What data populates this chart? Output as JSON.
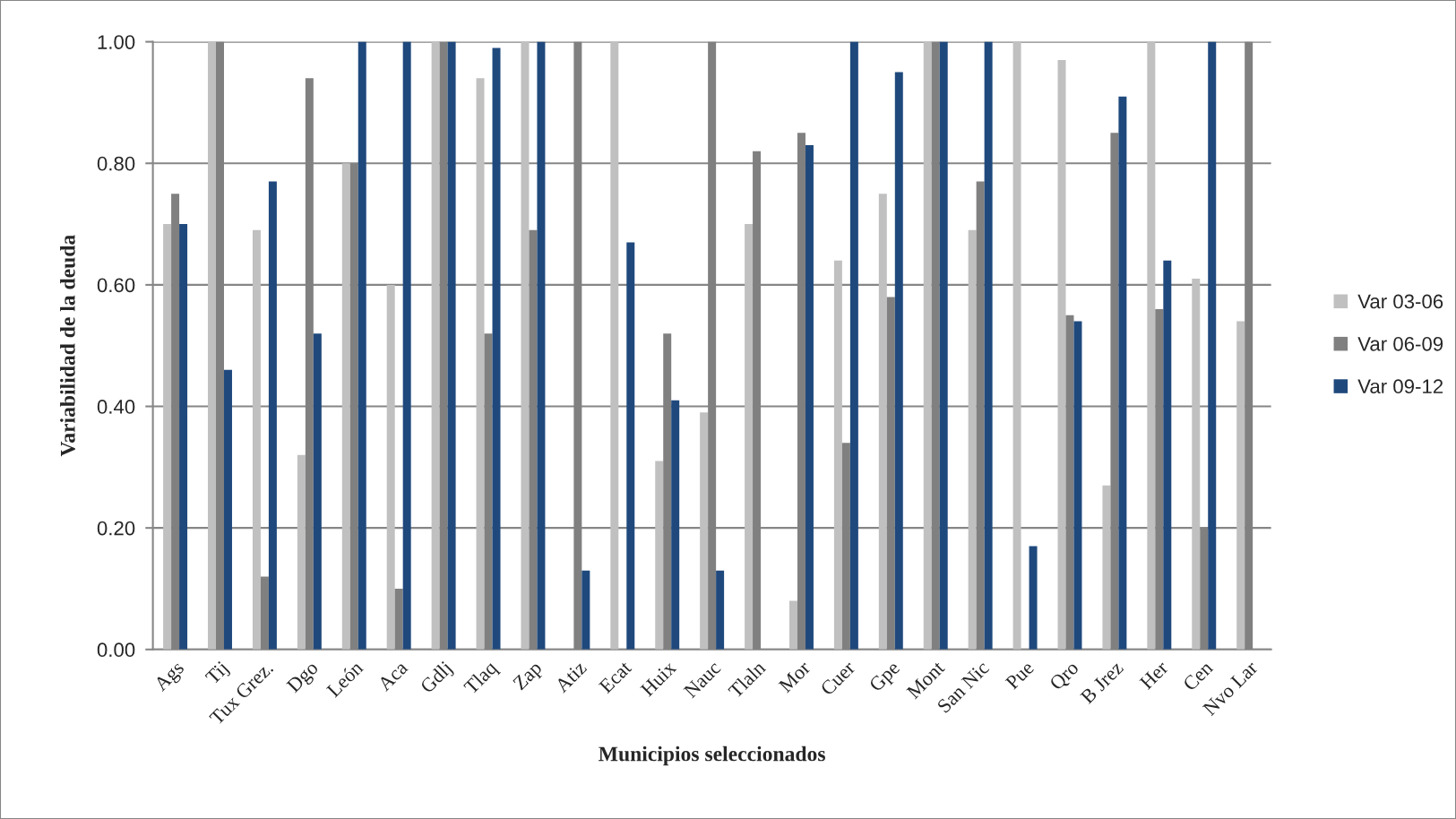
{
  "chart_data": {
    "type": "bar",
    "xlabel": "Municipios seleccionados",
    "ylabel": "Variabilidad de la deuda",
    "categories": [
      "Ags",
      "Tij",
      "Tux Grez.",
      "Dgo",
      "León",
      "Aca",
      "Gdlj",
      "Tlaq",
      "Zap",
      "Atiz",
      "Ecat",
      "Huix",
      "Nauc",
      "Tlaln",
      "Mor",
      "Cuer",
      "Gpe",
      "Mont",
      "San Nic",
      "Pue",
      "Qro",
      "B Jrez",
      "Her",
      "Cen",
      "Nvo Lar"
    ],
    "series": [
      {
        "name": "Var 03-06",
        "color": "#c0c0c0",
        "values": [
          0.7,
          1.0,
          0.69,
          0.32,
          0.8,
          0.6,
          1.0,
          0.94,
          1.0,
          0.0,
          1.0,
          0.31,
          0.39,
          0.7,
          0.08,
          0.64,
          0.75,
          1.0,
          0.69,
          1.0,
          0.97,
          0.27,
          1.0,
          0.61,
          0.54
        ]
      },
      {
        "name": "Var 06-09",
        "color": "#808080",
        "values": [
          0.75,
          1.0,
          0.12,
          0.94,
          0.8,
          0.1,
          1.0,
          0.52,
          0.69,
          1.0,
          0.0,
          0.52,
          1.0,
          0.82,
          0.85,
          0.34,
          0.58,
          1.0,
          0.77,
          0.0,
          0.55,
          0.85,
          0.56,
          0.2,
          1.0
        ]
      },
      {
        "name": "Var 09-12",
        "color": "#1f497d",
        "values": [
          0.7,
          0.46,
          0.77,
          0.52,
          1.0,
          1.0,
          1.0,
          0.99,
          1.0,
          0.13,
          0.67,
          0.41,
          0.13,
          0.0,
          0.83,
          1.0,
          0.95,
          1.0,
          1.0,
          0.17,
          0.54,
          0.91,
          0.64,
          1.0,
          0.0
        ]
      }
    ],
    "ylim": [
      0,
      1
    ],
    "yticks": [
      {
        "value": 0,
        "label": "0.00"
      },
      {
        "value": 0.2,
        "label": "0.20"
      },
      {
        "value": 0.4,
        "label": "0.40"
      },
      {
        "value": 0.6,
        "label": "0.60"
      },
      {
        "value": 0.8,
        "label": "0.80"
      },
      {
        "value": 1.0,
        "label": "1.00"
      }
    ],
    "grid": "y",
    "legend": "right"
  }
}
